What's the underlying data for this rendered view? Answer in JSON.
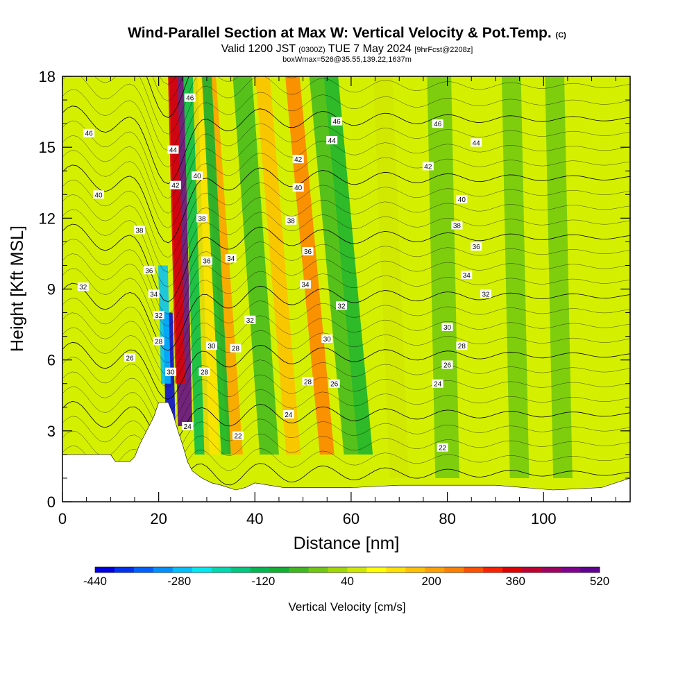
{
  "header": {
    "title_main": "Wind-Parallel Section at Max W: Vertical Velocity & Pot.Temp.",
    "title_copyright": "(C)",
    "valid_prefix": "Valid 1200 JST",
    "valid_utc": "(0300Z)",
    "valid_date": "TUE 7 May 2024",
    "forecast_info": "[9hrFcst@2208z]",
    "box_info": "boxWmax=526@35.55,139.22,1637m"
  },
  "colorbar": {
    "title": "Vertical Velocity [cm/s]",
    "tick_labels": [
      "-440",
      "-280",
      "-120",
      "40",
      "200",
      "360",
      "520"
    ],
    "colors": [
      "#0000e0",
      "#0030f0",
      "#0060ff",
      "#0090ff",
      "#00c0ff",
      "#00e8f0",
      "#00d8b0",
      "#00c880",
      "#00b850",
      "#10b030",
      "#40b820",
      "#70c810",
      "#a0d800",
      "#d0e800",
      "#ffff00",
      "#ffe000",
      "#ffc000",
      "#ffa000",
      "#ff8000",
      "#ff5000",
      "#ff2000",
      "#e00000",
      "#c00030",
      "#a00060",
      "#800090",
      "#600090"
    ]
  },
  "chart_data": {
    "type": "heatmap",
    "xlabel": "Distance [nm]",
    "ylabel": "Height [Kft MSL]",
    "xlim": [
      0,
      118
    ],
    "ylim": [
      0,
      18
    ],
    "x_ticks": [
      "0",
      "20",
      "40",
      "60",
      "80",
      "100"
    ],
    "y_ticks": [
      "0",
      "3",
      "6",
      "9",
      "12",
      "15",
      "18"
    ],
    "background_color": "#d4f000",
    "terrain_profile": [
      [
        0,
        2
      ],
      [
        10,
        2
      ],
      [
        11,
        1.7
      ],
      [
        14,
        1.7
      ],
      [
        15,
        1.9
      ],
      [
        16,
        2.4
      ],
      [
        17,
        2.8
      ],
      [
        18,
        3.2
      ],
      [
        19,
        3.6
      ],
      [
        20,
        4.2
      ],
      [
        22,
        4.2
      ],
      [
        23,
        3.7
      ],
      [
        24,
        3.0
      ],
      [
        25,
        2.4
      ],
      [
        26,
        1.7
      ],
      [
        27,
        1.3
      ],
      [
        29,
        1.0
      ],
      [
        31,
        0.8
      ],
      [
        33,
        0.7
      ],
      [
        36,
        0.5
      ],
      [
        38,
        0.6
      ],
      [
        40,
        0.8
      ],
      [
        46,
        0.6
      ],
      [
        60,
        0.6
      ],
      [
        70,
        0.7
      ],
      [
        90,
        0.7
      ],
      [
        102,
        0.5
      ],
      [
        112,
        0.6
      ],
      [
        118,
        1.0
      ]
    ],
    "contour_levels": [
      22,
      24,
      26,
      28,
      30,
      32,
      34,
      36,
      38,
      40,
      42,
      44,
      46
    ],
    "contour_labels": [
      {
        "x": 26.5,
        "y": 17.1,
        "text": "46"
      },
      {
        "x": 57,
        "y": 16.1,
        "text": "46"
      },
      {
        "x": 78,
        "y": 16.0,
        "text": "46"
      },
      {
        "x": 5.5,
        "y": 15.6,
        "text": "46"
      },
      {
        "x": 23,
        "y": 14.9,
        "text": "44"
      },
      {
        "x": 56,
        "y": 15.3,
        "text": "44"
      },
      {
        "x": 86,
        "y": 15.2,
        "text": "44"
      },
      {
        "x": 23.5,
        "y": 13.4,
        "text": "42"
      },
      {
        "x": 49,
        "y": 14.5,
        "text": "42"
      },
      {
        "x": 76,
        "y": 14.2,
        "text": "42"
      },
      {
        "x": 28,
        "y": 13.8,
        "text": "40"
      },
      {
        "x": 49,
        "y": 13.3,
        "text": "40"
      },
      {
        "x": 83,
        "y": 12.8,
        "text": "40"
      },
      {
        "x": 7.5,
        "y": 13.0,
        "text": "40"
      },
      {
        "x": 29,
        "y": 12.0,
        "text": "38"
      },
      {
        "x": 47.5,
        "y": 11.9,
        "text": "38"
      },
      {
        "x": 82,
        "y": 11.7,
        "text": "38"
      },
      {
        "x": 16,
        "y": 11.5,
        "text": "38"
      },
      {
        "x": 30,
        "y": 10.2,
        "text": "36"
      },
      {
        "x": 51,
        "y": 10.6,
        "text": "36"
      },
      {
        "x": 86,
        "y": 10.8,
        "text": "36"
      },
      {
        "x": 18,
        "y": 9.8,
        "text": "36"
      },
      {
        "x": 35,
        "y": 10.3,
        "text": "34"
      },
      {
        "x": 50.5,
        "y": 9.2,
        "text": "34"
      },
      {
        "x": 84,
        "y": 9.6,
        "text": "34"
      },
      {
        "x": 19,
        "y": 8.8,
        "text": "34"
      },
      {
        "x": 4.3,
        "y": 9.1,
        "text": "32"
      },
      {
        "x": 20,
        "y": 7.9,
        "text": "32"
      },
      {
        "x": 39,
        "y": 7.7,
        "text": "32"
      },
      {
        "x": 58,
        "y": 8.3,
        "text": "32"
      },
      {
        "x": 88,
        "y": 8.8,
        "text": "32"
      },
      {
        "x": 31,
        "y": 6.6,
        "text": "30"
      },
      {
        "x": 55,
        "y": 6.9,
        "text": "30"
      },
      {
        "x": 80,
        "y": 7.4,
        "text": "30"
      },
      {
        "x": 22.5,
        "y": 5.5,
        "text": "30"
      },
      {
        "x": 20,
        "y": 6.8,
        "text": "28"
      },
      {
        "x": 36,
        "y": 6.5,
        "text": "28"
      },
      {
        "x": 29.5,
        "y": 5.5,
        "text": "28"
      },
      {
        "x": 51,
        "y": 5.1,
        "text": "28"
      },
      {
        "x": 83,
        "y": 6.6,
        "text": "28"
      },
      {
        "x": 14,
        "y": 6.1,
        "text": "26"
      },
      {
        "x": 56.5,
        "y": 5.0,
        "text": "26"
      },
      {
        "x": 80,
        "y": 5.8,
        "text": "26"
      },
      {
        "x": 26,
        "y": 3.2,
        "text": "24"
      },
      {
        "x": 47,
        "y": 3.7,
        "text": "24"
      },
      {
        "x": 78,
        "y": 5.0,
        "text": "24"
      },
      {
        "x": 36.5,
        "y": 2.8,
        "text": "22"
      },
      {
        "x": 79,
        "y": 2.3,
        "text": "22"
      }
    ],
    "velocity_bands": [
      {
        "x": 25.5,
        "y_low": 3.2,
        "y_high": 18,
        "slope": -0.12,
        "width": 3,
        "value": 520
      },
      {
        "x": 24.5,
        "y_low": 5,
        "y_high": 18,
        "slope": -0.12,
        "width": 2,
        "value": 360
      },
      {
        "x": 22.5,
        "y_low": 3,
        "y_high": 8,
        "slope": -0.12,
        "width": 2,
        "value": -440
      },
      {
        "x": 21.5,
        "y_low": 5,
        "y_high": 10,
        "slope": -0.12,
        "width": 2,
        "value": -280
      },
      {
        "x": 29,
        "y_low": 2,
        "y_high": 18,
        "slope": -0.15,
        "width": 3,
        "value": -120
      },
      {
        "x": 31,
        "y_low": 2,
        "y_high": 18,
        "slope": -0.15,
        "width": 3,
        "value": 120
      },
      {
        "x": 36,
        "y_low": 2,
        "y_high": 18,
        "slope": -0.35,
        "width": 3,
        "value": 200
      },
      {
        "x": 34,
        "y_low": 2,
        "y_high": 18,
        "slope": -0.25,
        "width": 2,
        "value": -80
      },
      {
        "x": 43,
        "y_low": 2,
        "y_high": 18,
        "slope": -0.35,
        "width": 4,
        "value": -60
      },
      {
        "x": 48,
        "y_low": 2,
        "y_high": 18,
        "slope": -0.4,
        "width": 3,
        "value": 160
      },
      {
        "x": 55,
        "y_low": 2,
        "y_high": 18,
        "slope": -0.45,
        "width": 3,
        "value": 240
      },
      {
        "x": 60,
        "y_low": 2,
        "y_high": 18,
        "slope": -0.45,
        "width": 3,
        "value": -60
      },
      {
        "x": 63,
        "y_low": 2,
        "y_high": 18,
        "slope": -0.45,
        "width": 3,
        "value": -80
      },
      {
        "x": 70,
        "y_low": 1,
        "y_high": 18,
        "slope": -0.2,
        "width": 4,
        "value": 60
      },
      {
        "x": 80,
        "y_low": 1,
        "y_high": 18,
        "slope": -0.1,
        "width": 5,
        "value": -20
      },
      {
        "x": 95,
        "y_low": 1,
        "y_high": 18,
        "slope": -0.1,
        "width": 4,
        "value": -20
      },
      {
        "x": 104,
        "y_low": 1,
        "y_high": 18,
        "slope": -0.1,
        "width": 4,
        "value": -20
      }
    ]
  }
}
